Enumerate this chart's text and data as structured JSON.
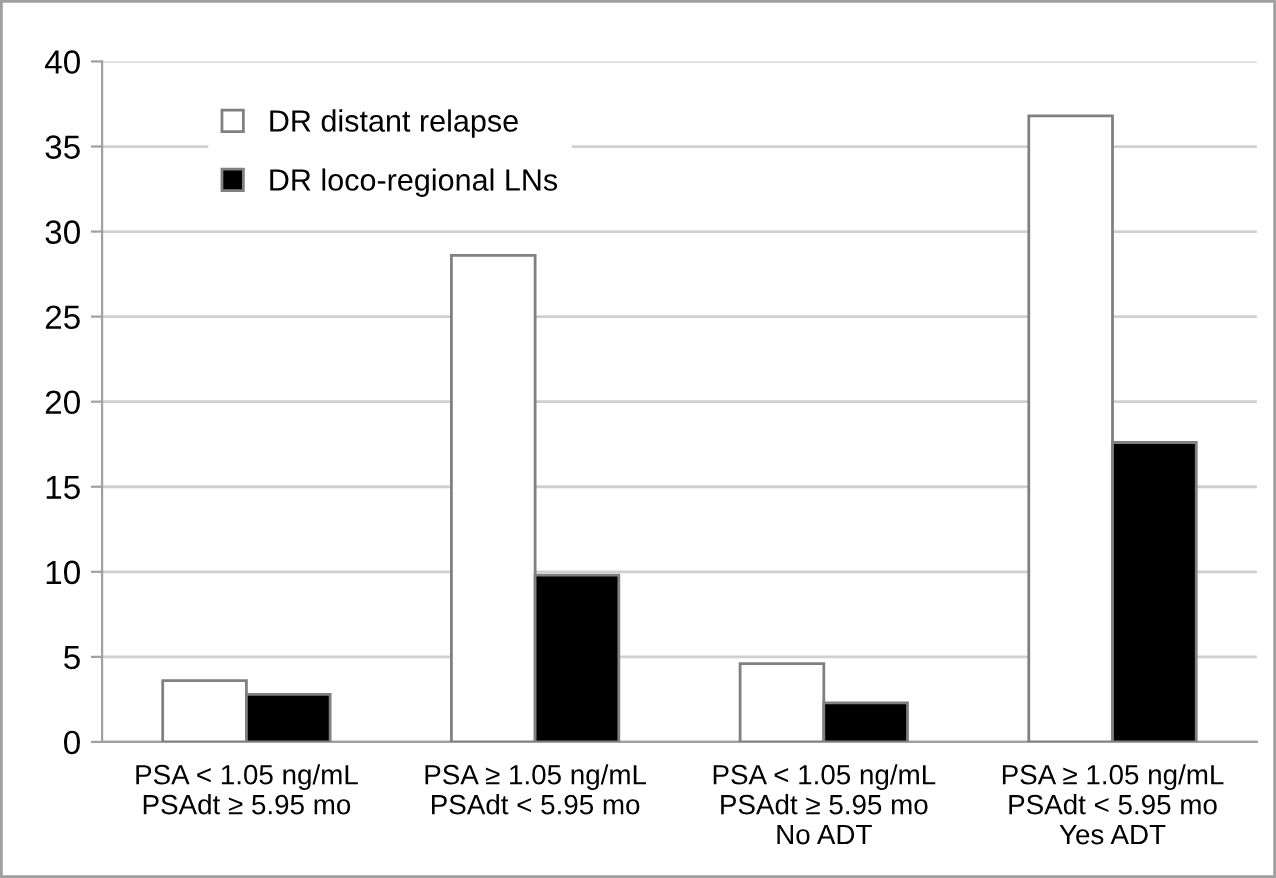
{
  "chart_data": {
    "type": "bar",
    "categories": [
      "PSA < 1.05 ng/mL\nPSAdt ≥ 5.95 mo",
      "PSA ≥ 1.05 ng/mL\nPSAdt < 5.95 mo",
      "PSA < 1.05 ng/mL\nPSAdt ≥ 5.95 mo\nNo ADT",
      "PSA ≥ 1.05 ng/mL\nPSAdt < 5.95 mo\nYes ADT"
    ],
    "series": [
      {
        "name": "DR distant relapse",
        "color": "#ffffff",
        "values": [
          3.6,
          28.6,
          4.6,
          36.8
        ]
      },
      {
        "name": "DR loco-regional LNs",
        "color": "#000000",
        "values": [
          2.8,
          9.8,
          2.3,
          17.6
        ]
      }
    ],
    "ylim": [
      0,
      40
    ],
    "yticks": [
      0,
      5,
      10,
      15,
      20,
      25,
      30,
      35,
      40
    ],
    "grid": "y",
    "legend": "top left"
  }
}
